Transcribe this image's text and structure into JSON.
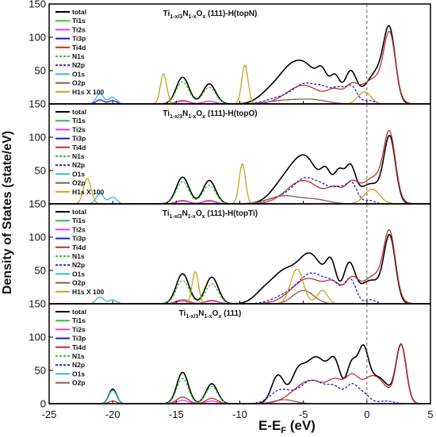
{
  "chart_data": {
    "type": "line",
    "xlabel": "E-E",
    "xlabel_sub": "F",
    "xlabel_unit": " (eV)",
    "ylabel": "Density of States (state/eV)",
    "xlim": [
      -25,
      5
    ],
    "ylim": [
      0,
      150
    ],
    "x_ticks": [
      "-25",
      "-20",
      "-15",
      "-10",
      "-5",
      "0",
      "5"
    ],
    "y_ticks": [
      "0",
      "50",
      "100",
      "150"
    ],
    "fermi_line": 0,
    "colors": {
      "total": "#000000",
      "Ti1s": "#35c035",
      "Ti2s": "#e040e0",
      "Ti3p": "#1a1ad0",
      "Ti4d": "#c0302a",
      "N1s": "#33cc33",
      "N2p": "#2020dd",
      "O1s": "#30b8e8",
      "O2p": "#8b5a50",
      "H1s": "#d4a017"
    },
    "panels": [
      {
        "title": {
          "a": "Ti",
          "s1": "1-x/3",
          "b": "N",
          "s2": "1-x",
          "c": "O",
          "s3": "x",
          "d": " (111)-H(topN)"
        },
        "legend": [
          "total",
          "Ti1s",
          "Ti2s",
          "Ti3p",
          "Ti4d",
          "N1s",
          "N2p",
          "O1s",
          "O2p",
          "H1s X 100"
        ],
        "series": [
          {
            "name": "total",
            "peaks": [
              [
                -14.5,
                0.5,
                40
              ],
              [
                -12.4,
                0.5,
                30
              ],
              [
                -7.5,
                0.9,
                20
              ],
              [
                -6.2,
                0.8,
                30
              ],
              [
                -4.8,
                1.0,
                55
              ],
              [
                -3.5,
                0.4,
                30
              ],
              [
                -2.5,
                0.4,
                38
              ],
              [
                -1.3,
                0.45,
                45
              ],
              [
                0.3,
                0.9,
                22
              ],
              [
                1.0,
                0.7,
                30
              ],
              [
                1.8,
                0.45,
                95
              ]
            ]
          },
          {
            "name": "Ti4d",
            "peaks": [
              [
                -14.5,
                0.5,
                5
              ],
              [
                -12.4,
                0.5,
                4
              ],
              [
                -5,
                1.3,
                28
              ],
              [
                -2.5,
                0.6,
                18
              ],
              [
                -1.2,
                0.5,
                22
              ],
              [
                0.6,
                1.0,
                38
              ],
              [
                1.8,
                0.45,
                90
              ]
            ]
          },
          {
            "name": "N2p",
            "dash": true,
            "peaks": [
              [
                -7,
                1.0,
                8
              ],
              [
                -4.8,
                1.0,
                30
              ],
              [
                -3.3,
                0.6,
                15
              ],
              [
                -2.2,
                0.5,
                20
              ],
              [
                -1.2,
                0.45,
                25
              ],
              [
                0.2,
                0.4,
                5
              ]
            ]
          },
          {
            "name": "N1s",
            "dash": true,
            "peaks": [
              [
                -14.5,
                0.5,
                33
              ],
              [
                -12.4,
                0.5,
                25
              ]
            ]
          },
          {
            "name": "Ti3p",
            "peaks": [
              [
                -21,
                0.3,
                6
              ],
              [
                -20,
                0.3,
                5
              ]
            ]
          },
          {
            "name": "O1s",
            "peaks": [
              [
                -21,
                0.3,
                15
              ],
              [
                -20,
                0.3,
                10
              ]
            ]
          },
          {
            "name": "O2p",
            "peaks": [
              [
                -6,
                1.5,
                6
              ],
              [
                -4,
                1.0,
                4
              ]
            ]
          },
          {
            "name": "Ti2s",
            "peaks": [
              [
                -14.5,
                0.5,
                4
              ],
              [
                -12.4,
                0.5,
                4
              ]
            ]
          },
          {
            "name": "H1s",
            "peaks": [
              [
                -16,
                0.25,
                45
              ],
              [
                -9.6,
                0.25,
                58
              ],
              [
                -0.2,
                0.5,
                18
              ]
            ]
          }
        ]
      },
      {
        "title": {
          "a": "Ti",
          "s1": "1-x/3",
          "b": "N",
          "s2": "1-x",
          "c": "O",
          "s3": "x",
          "d": " (111)-H(topO)"
        },
        "legend": [
          "total",
          "Ti1s",
          "Ti2s",
          "Ti3p",
          "Ti4d",
          "N1s",
          "N2p",
          "O1s",
          "O2p",
          "H1s X 100"
        ],
        "series": [
          {
            "name": "total",
            "peaks": [
              [
                -14.5,
                0.5,
                40
              ],
              [
                -12.4,
                0.5,
                35
              ],
              [
                -6.5,
                1.0,
                30
              ],
              [
                -4.8,
                1.0,
                65
              ],
              [
                -3.2,
                0.4,
                35
              ],
              [
                -2.2,
                0.4,
                45
              ],
              [
                -1.3,
                0.4,
                50
              ],
              [
                0.3,
                0.9,
                30
              ],
              [
                1.8,
                0.45,
                95
              ]
            ]
          },
          {
            "name": "Ti4d",
            "peaks": [
              [
                -14.5,
                0.5,
                5
              ],
              [
                -12.4,
                0.5,
                5
              ],
              [
                -5,
                1.3,
                35
              ],
              [
                -2.5,
                0.6,
                20
              ],
              [
                -1.2,
                0.5,
                25
              ],
              [
                0.6,
                1.0,
                40
              ],
              [
                1.8,
                0.45,
                90
              ]
            ]
          },
          {
            "name": "N2p",
            "dash": true,
            "peaks": [
              [
                -7,
                1.0,
                8
              ],
              [
                -4.8,
                1.0,
                38
              ],
              [
                -3.3,
                0.6,
                15
              ],
              [
                -2.2,
                0.5,
                20
              ],
              [
                -1.2,
                0.45,
                30
              ],
              [
                0.2,
                0.4,
                5
              ]
            ]
          },
          {
            "name": "N1s",
            "dash": true,
            "peaks": [
              [
                -14.5,
                0.5,
                33
              ],
              [
                -12.4,
                0.5,
                28
              ]
            ]
          },
          {
            "name": "O1s",
            "peaks": [
              [
                -21,
                0.3,
                15
              ],
              [
                -20,
                0.3,
                10
              ]
            ]
          },
          {
            "name": "O2p",
            "peaks": [
              [
                -6.5,
                1.2,
                12
              ],
              [
                -4,
                1.0,
                6
              ]
            ]
          },
          {
            "name": "Ti2s",
            "peaks": [
              [
                -14.5,
                0.5,
                4
              ],
              [
                -12.4,
                0.5,
                4
              ]
            ]
          },
          {
            "name": "H1s",
            "peaks": [
              [
                -22,
                0.3,
                38
              ],
              [
                -9.8,
                0.25,
                60
              ],
              [
                0.4,
                0.6,
                22
              ]
            ]
          }
        ]
      },
      {
        "title": {
          "a": "Ti",
          "s1": "1-x/3",
          "b": "N",
          "s2": "1-x",
          "c": "O",
          "s3": "x",
          "d": " (111)-H(topTi)"
        },
        "legend": [
          "total",
          "Ti1s",
          "Ti2s",
          "Ti3p",
          "Ti4d",
          "N1s",
          "N2p",
          "O1s",
          "O2p",
          "H1s X 100"
        ],
        "series": [
          {
            "name": "total",
            "peaks": [
              [
                -14.5,
                0.5,
                45
              ],
              [
                -12.2,
                0.5,
                40
              ],
              [
                -8,
                0.8,
                20
              ],
              [
                -6.6,
                0.8,
                35
              ],
              [
                -4.5,
                1.1,
                75
              ],
              [
                -2.8,
                0.4,
                45
              ],
              [
                -1.4,
                0.45,
                55
              ],
              [
                0.3,
                0.9,
                35
              ],
              [
                1.8,
                0.45,
                95
              ]
            ]
          },
          {
            "name": "Ti4d",
            "peaks": [
              [
                -14.5,
                0.5,
                6
              ],
              [
                -12.2,
                0.5,
                5
              ],
              [
                -4.6,
                1.3,
                38
              ],
              [
                -2.6,
                0.6,
                22
              ],
              [
                -1.2,
                0.5,
                30
              ],
              [
                0.6,
                1.0,
                42
              ],
              [
                1.8,
                0.45,
                90
              ]
            ]
          },
          {
            "name": "N2p",
            "dash": true,
            "peaks": [
              [
                -6.5,
                1.0,
                10
              ],
              [
                -4.3,
                1.1,
                45
              ],
              [
                -2.6,
                0.6,
                20
              ],
              [
                -1.3,
                0.45,
                35
              ],
              [
                0.3,
                0.4,
                6
              ]
            ]
          },
          {
            "name": "N1s",
            "dash": true,
            "peaks": [
              [
                -14.5,
                0.5,
                35
              ],
              [
                -12.2,
                0.5,
                30
              ]
            ]
          },
          {
            "name": "O1s",
            "peaks": [
              [
                -21,
                0.3,
                10
              ],
              [
                -20,
                0.3,
                6
              ]
            ]
          },
          {
            "name": "O2p",
            "peaks": [
              [
                -5,
                0.8,
                20
              ]
            ]
          },
          {
            "name": "Ti2s",
            "peaks": [
              [
                -14.5,
                0.5,
                4
              ],
              [
                -12.2,
                0.5,
                4
              ]
            ]
          },
          {
            "name": "H1s",
            "peaks": [
              [
                -13.5,
                0.25,
                48
              ],
              [
                -5.5,
                0.5,
                52
              ],
              [
                -3.5,
                0.4,
                20
              ]
            ]
          }
        ]
      },
      {
        "title": {
          "a": "Ti",
          "s1": "1-x/3",
          "b": "N",
          "s2": "1-x",
          "c": "O",
          "s3": "x",
          "d": " (111)"
        },
        "legend": [
          "total",
          "Ti1s",
          "Ti2s",
          "Ti3p",
          "Ti4d",
          "N1s",
          "N2p",
          "O1s",
          "O2p"
        ],
        "series": [
          {
            "name": "total",
            "peaks": [
              [
                -20,
                0.3,
                22
              ],
              [
                -14.5,
                0.45,
                47
              ],
              [
                -12.2,
                0.45,
                30
              ],
              [
                -7,
                0.5,
                42
              ],
              [
                -5.5,
                0.5,
                30
              ],
              [
                -4,
                1.0,
                70
              ],
              [
                -2.5,
                0.45,
                45
              ],
              [
                -1.2,
                0.4,
                55
              ],
              [
                -0.3,
                0.4,
                65
              ],
              [
                0.8,
                0.9,
                40
              ],
              [
                2.7,
                0.4,
                85
              ]
            ]
          },
          {
            "name": "Ti4d",
            "peaks": [
              [
                -20,
                0.3,
                4
              ],
              [
                -14.5,
                0.45,
                10
              ],
              [
                -12.2,
                0.45,
                8
              ],
              [
                -4.4,
                1.3,
                35
              ],
              [
                -2.4,
                0.6,
                25
              ],
              [
                -1.2,
                0.5,
                30
              ],
              [
                0.5,
                1.0,
                42
              ],
              [
                2.7,
                0.4,
                85
              ]
            ]
          },
          {
            "name": "N2p",
            "dash": true,
            "peaks": [
              [
                -6.8,
                0.8,
                20
              ],
              [
                -4.3,
                1.0,
                35
              ],
              [
                -2.5,
                0.6,
                20
              ],
              [
                -1.2,
                0.45,
                25
              ],
              [
                -0.3,
                0.5,
                15
              ],
              [
                1.5,
                0.6,
                4
              ]
            ]
          },
          {
            "name": "N1s",
            "dash": true,
            "peaks": [
              [
                -14.5,
                0.45,
                38
              ],
              [
                -12.2,
                0.45,
                26
              ]
            ]
          },
          {
            "name": "O1s",
            "peaks": [
              [
                -20,
                0.3,
                20
              ]
            ]
          },
          {
            "name": "O2p",
            "peaks": [
              [
                -6.5,
                0.8,
                6
              ]
            ]
          },
          {
            "name": "Ti2s",
            "peaks": [
              [
                -14.5,
                0.45,
                5
              ],
              [
                -12.2,
                0.45,
                4
              ]
            ]
          }
        ]
      }
    ]
  }
}
